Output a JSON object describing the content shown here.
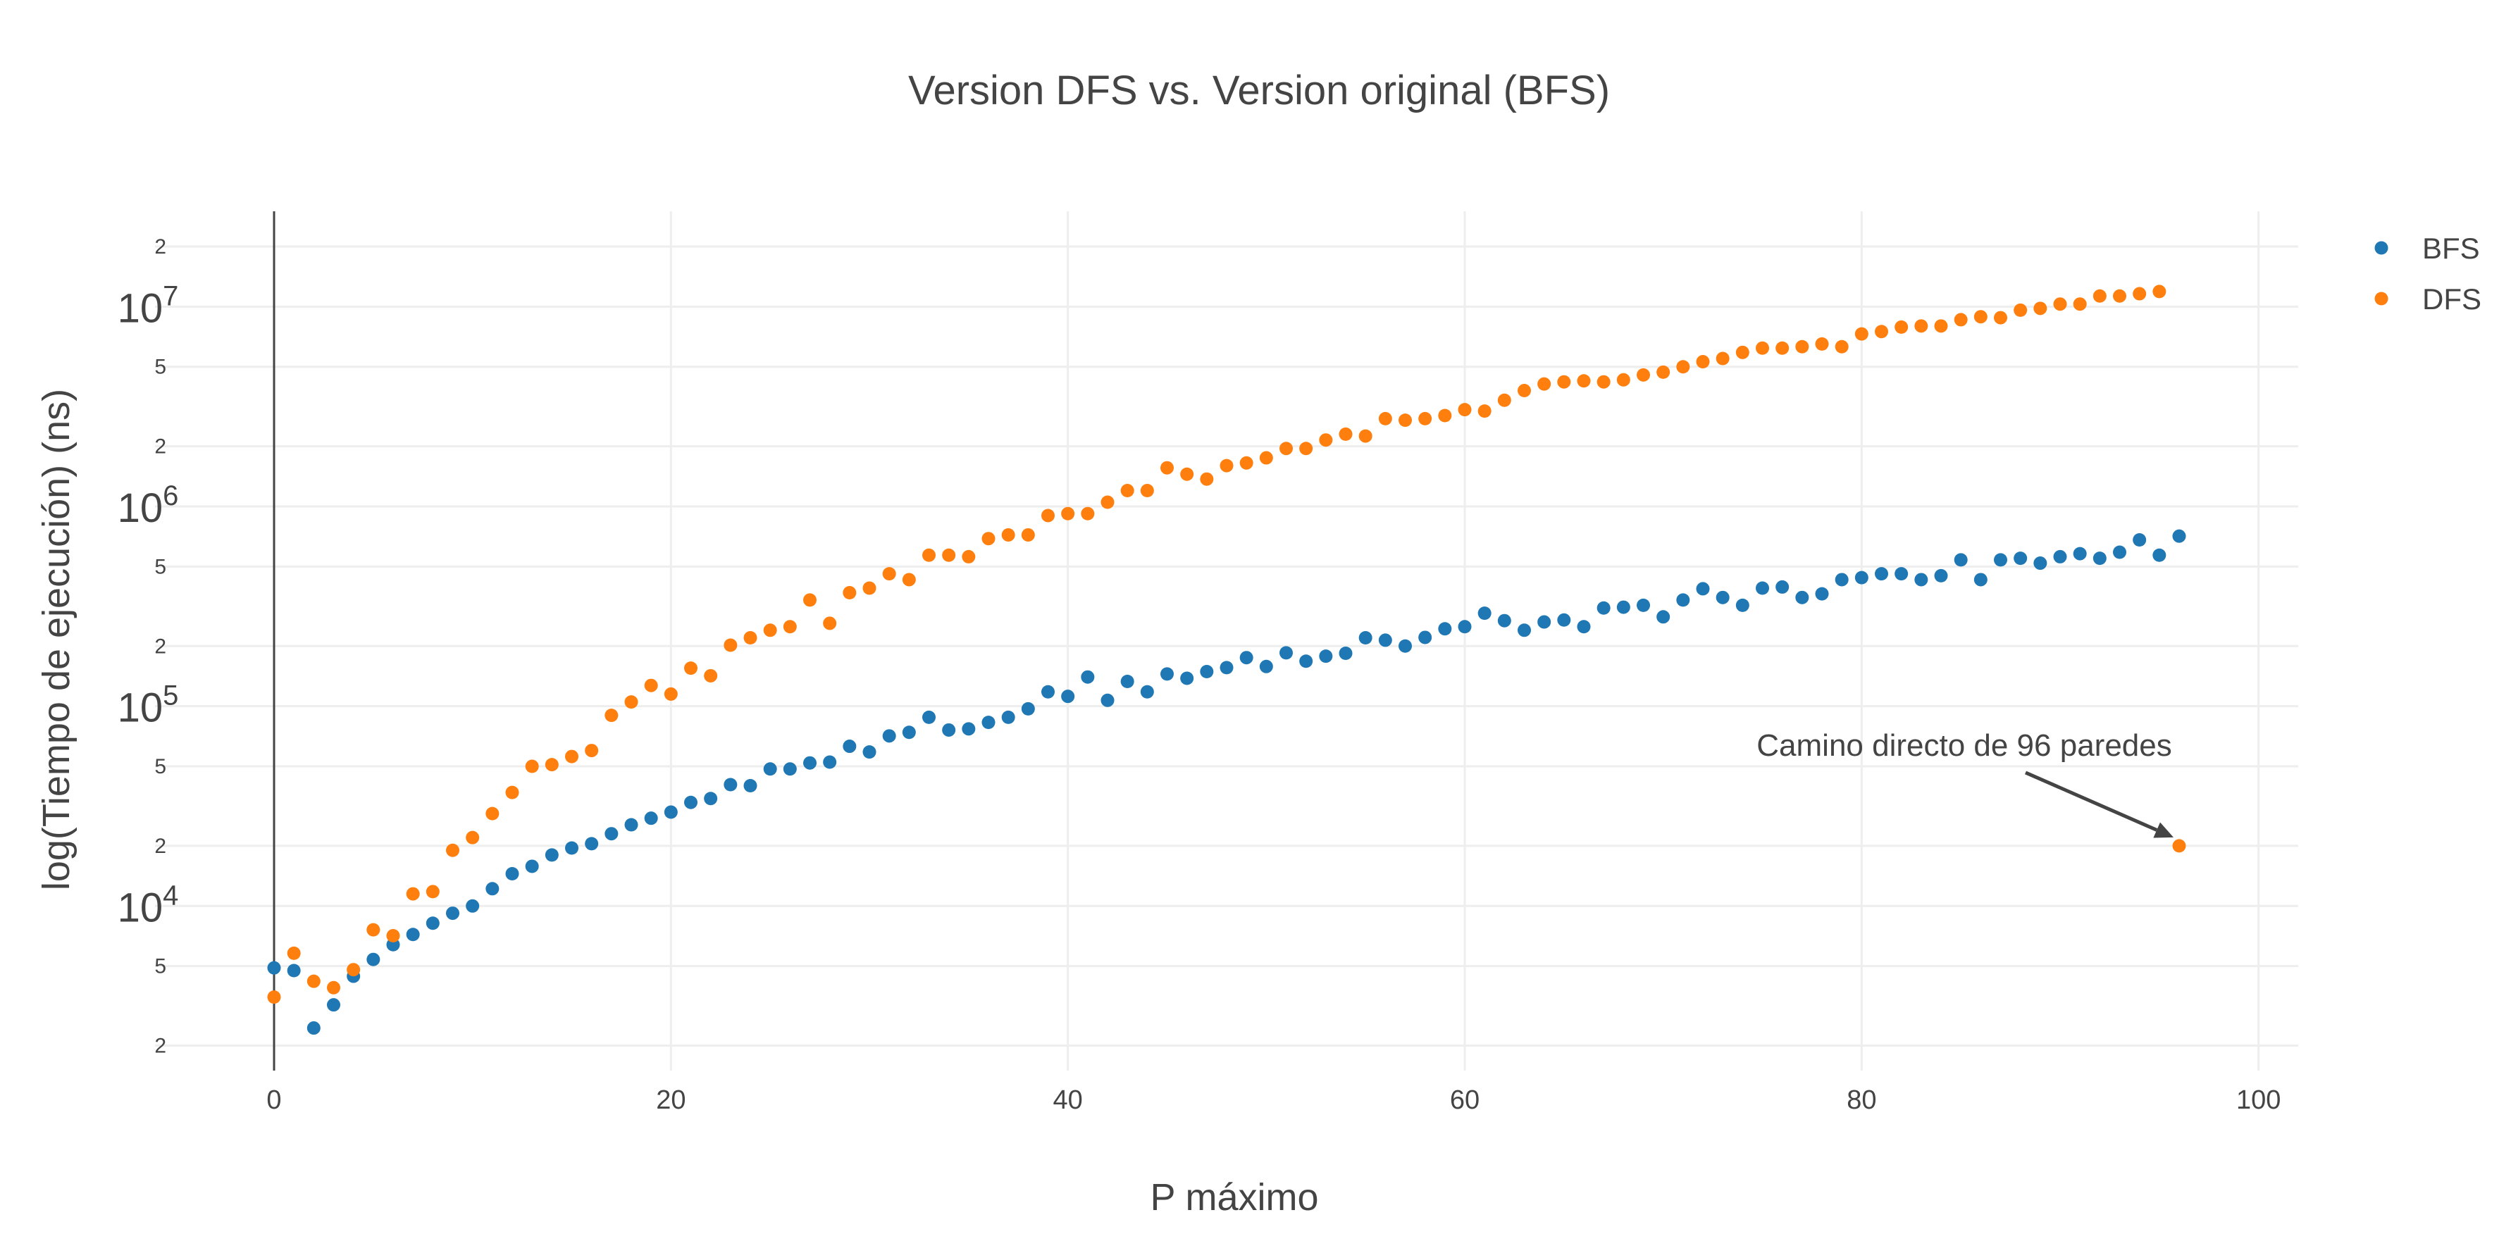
{
  "chart_data": {
    "type": "scatter",
    "title": "Version DFS  vs. Version original (BFS)",
    "xlabel": "P máximo",
    "ylabel": "log(Tiempo de ejecución) (ns)",
    "xlim": [
      -6,
      102
    ],
    "ylim": [
      1500.0,
      30000000.0
    ],
    "yscale": "log",
    "x_ticks": [
      "0",
      "20",
      "40",
      "60",
      "80",
      "100"
    ],
    "y_ticks_major": [
      {
        "base": "10",
        "exp": "4"
      },
      {
        "base": "10",
        "exp": "5"
      },
      {
        "base": "10",
        "exp": "6"
      },
      {
        "base": "10",
        "exp": "7"
      }
    ],
    "y_ticks_minor": [
      "2",
      "5",
      "2",
      "5",
      "2",
      "5",
      "2",
      "5",
      "2"
    ],
    "grid": true,
    "legend_position": "top-right",
    "series": [
      {
        "name": "BFS",
        "color": "#1f77b4",
        "x": [
          0,
          1,
          2,
          3,
          4,
          5,
          6,
          7,
          8,
          9,
          10,
          11,
          12,
          13,
          14,
          15,
          16,
          17,
          18,
          19,
          20,
          21,
          22,
          23,
          24,
          25,
          26,
          27,
          28,
          29,
          30,
          31,
          32,
          33,
          34,
          35,
          36,
          37,
          38,
          39,
          40,
          41,
          42,
          43,
          44,
          45,
          46,
          47,
          48,
          49,
          50,
          51,
          52,
          53,
          54,
          55,
          56,
          57,
          58,
          59,
          60,
          61,
          62,
          63,
          64,
          65,
          66,
          67,
          68,
          69,
          70,
          71,
          72,
          73,
          74,
          75,
          76,
          77,
          78,
          79,
          80,
          81,
          82,
          83,
          84,
          85,
          86,
          87,
          88,
          89,
          90,
          91,
          92,
          93,
          94,
          95,
          96
        ],
        "y": [
          4900,
          4750,
          2450,
          3200,
          4450,
          5400,
          6400,
          7200,
          8200,
          9200,
          10000,
          12200,
          14500,
          15800,
          18000,
          19500,
          20500,
          23000,
          25500,
          27500,
          29500,
          33000,
          34500,
          40500,
          40000,
          48500,
          48500,
          52000,
          52500,
          63000,
          59000,
          71000,
          74000,
          88000,
          76000,
          77000,
          83000,
          88000,
          97000,
          118000,
          112000,
          140000,
          107000,
          133000,
          118000,
          145000,
          138000,
          149000,
          156000,
          175000,
          158000,
          185000,
          168000,
          178000,
          184000,
          220000,
          214000,
          200000,
          221000,
          244000,
          250000,
          292000,
          268000,
          240000,
          264000,
          270000,
          250000,
          310000,
          313000,
          320000,
          280000,
          340000,
          387000,
          350000,
          320000,
          390000,
          395000,
          350000,
          365000,
          430000,
          440000,
          460000,
          460000,
          430000,
          450000,
          540000,
          430000,
          540000,
          550000,
          520000,
          560000,
          580000,
          550000,
          590000,
          680000,
          570000,
          710000
        ]
      },
      {
        "name": "DFS",
        "color": "#ff7f0e",
        "x": [
          0,
          1,
          2,
          3,
          4,
          5,
          6,
          7,
          8,
          9,
          10,
          11,
          12,
          13,
          14,
          15,
          16,
          17,
          18,
          19,
          20,
          21,
          22,
          23,
          24,
          25,
          26,
          27,
          28,
          29,
          30,
          31,
          32,
          33,
          34,
          35,
          36,
          37,
          38,
          39,
          40,
          41,
          42,
          43,
          44,
          45,
          46,
          47,
          48,
          49,
          50,
          51,
          52,
          53,
          54,
          55,
          56,
          57,
          58,
          59,
          60,
          61,
          62,
          63,
          64,
          65,
          66,
          67,
          68,
          69,
          70,
          71,
          72,
          73,
          74,
          75,
          76,
          77,
          78,
          79,
          80,
          81,
          82,
          83,
          84,
          85,
          86,
          87,
          88,
          89,
          90,
          91,
          92,
          93,
          94,
          95,
          96
        ],
        "y": [
          3500,
          5800,
          4200,
          3900,
          4800,
          7600,
          7100,
          11500,
          11800,
          19000,
          22000,
          29000,
          37000,
          50000,
          51000,
          56000,
          60000,
          90000,
          105000,
          127000,
          115000,
          155000,
          142000,
          202000,
          220000,
          240000,
          250000,
          340000,
          260000,
          370000,
          390000,
          460000,
          430000,
          570000,
          570000,
          560000,
          690000,
          720000,
          720000,
          900000,
          920000,
          920000,
          1050000,
          1200000,
          1200000,
          1560000,
          1450000,
          1370000,
          1600000,
          1650000,
          1750000,
          1950000,
          1950000,
          2150000,
          2300000,
          2250000,
          2750000,
          2700000,
          2750000,
          2850000,
          3050000,
          3000000,
          3400000,
          3800000,
          4100000,
          4200000,
          4250000,
          4200000,
          4300000,
          4550000,
          4700000,
          5000000,
          5300000,
          5500000,
          5900000,
          6200000,
          6200000,
          6300000,
          6500000,
          6300000,
          7300000,
          7500000,
          7900000,
          8000000,
          8000000,
          8600000,
          8900000,
          8800000,
          9600000,
          9800000,
          10300000,
          10300000,
          11300000,
          11300000,
          11600000,
          11900000,
          20000
        ]
      }
    ],
    "annotation": {
      "text": "Camino directo  de  96 paredes",
      "x": 96,
      "y": 20000
    }
  }
}
